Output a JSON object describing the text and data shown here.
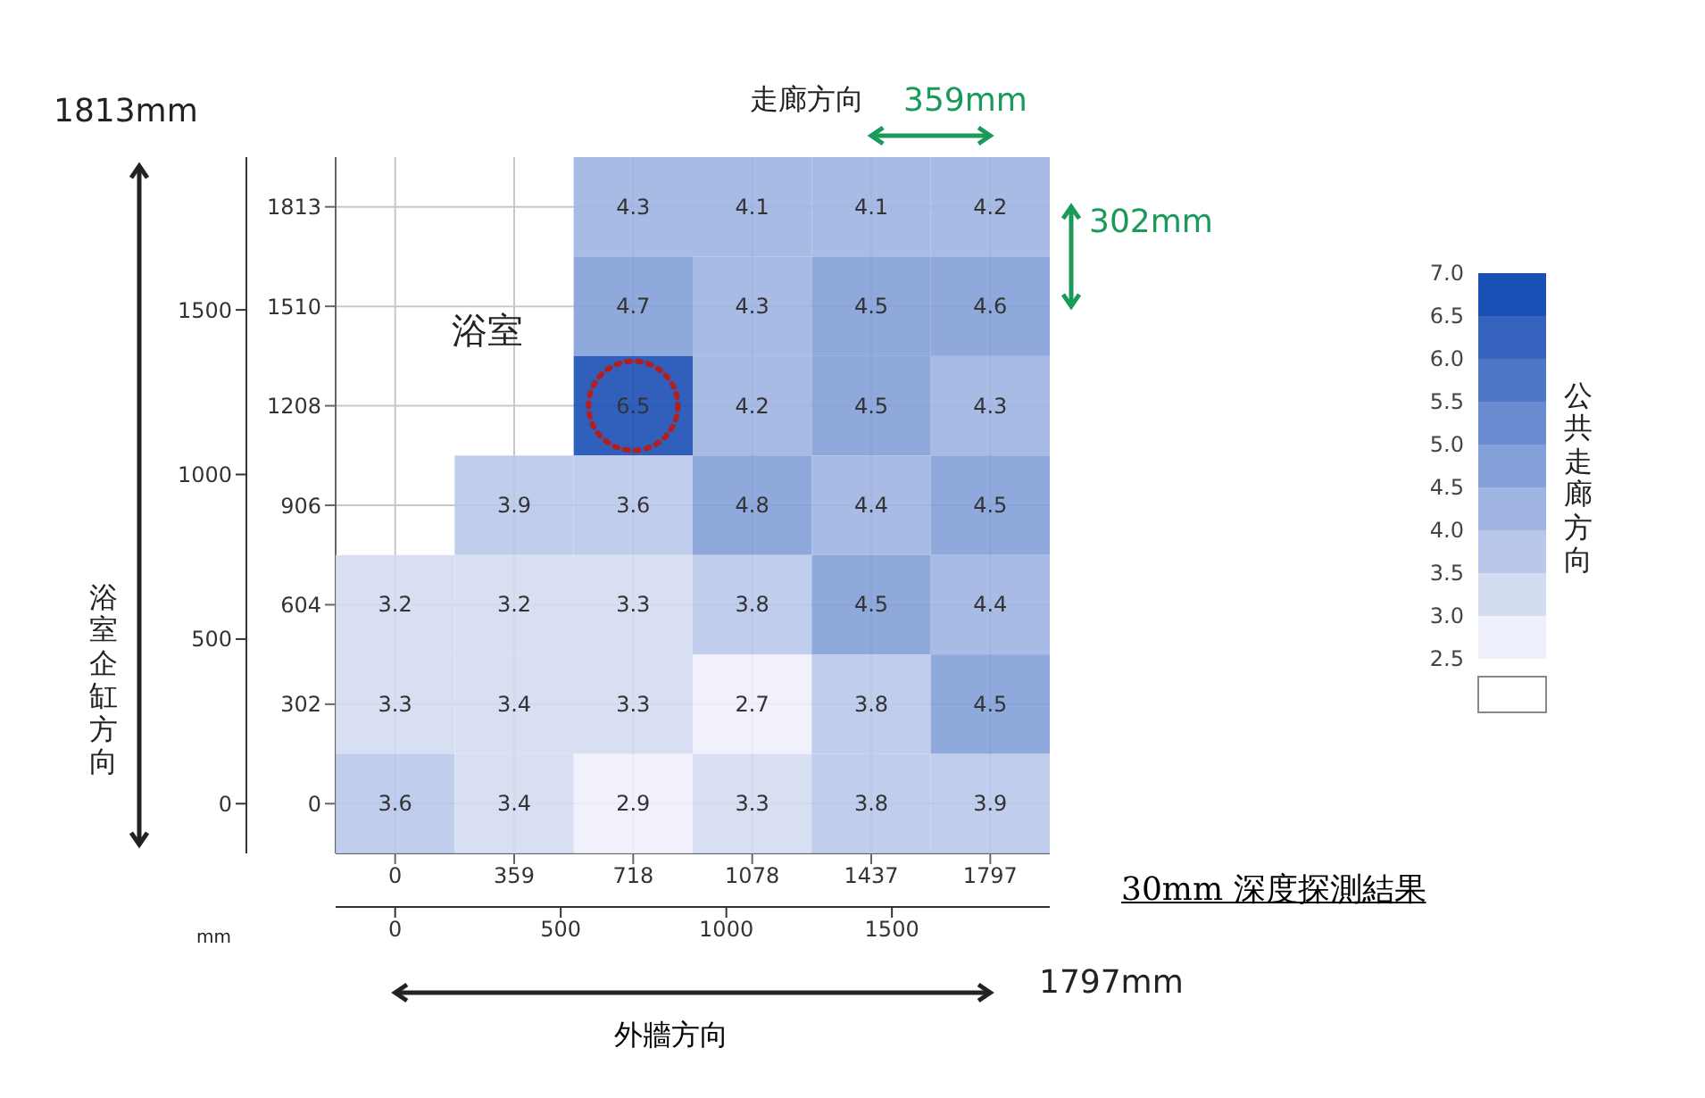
{
  "chart_data": {
    "type": "heatmap",
    "title": "30mm 深度探測結果",
    "xlabel": "外牆方向",
    "categories": [
      "0",
      "359",
      "718",
      "1078",
      "1437",
      "1797"
    ],
    "y_categories": [
      "1813",
      "1510",
      "1208",
      "906",
      "604",
      "302",
      "0"
    ],
    "cells": [
      [
        null,
        null,
        4.3,
        4.1,
        4.1,
        4.2
      ],
      [
        null,
        null,
        4.7,
        4.3,
        4.5,
        4.6
      ],
      [
        null,
        null,
        6.5,
        4.2,
        4.5,
        4.3
      ],
      [
        null,
        3.9,
        3.6,
        4.8,
        4.4,
        4.5
      ],
      [
        3.2,
        3.2,
        3.3,
        3.8,
        4.5,
        4.4
      ],
      [
        3.3,
        3.4,
        3.3,
        2.7,
        3.8,
        4.5
      ],
      [
        3.6,
        3.4,
        2.9,
        3.3,
        3.8,
        3.9
      ]
    ],
    "data_labels": true,
    "grid": true,
    "clim": [
      2.5,
      7.0
    ],
    "cticks": [
      2.5,
      {
        "value": 3,
        "label": "3.0"
      },
      3.5,
      {
        "value": 4,
        "label": "4.0"
      },
      4.5,
      {
        "value": 5,
        "label": "5.0"
      },
      5.5,
      {
        "value": 6,
        "label": "6.0"
      },
      6.5,
      {
        "value": 7,
        "label": "7.0"
      }
    ],
    "x2lim": [
      0,
      1797
    ],
    "x2ticks": [
      0,
      500,
      1000,
      1500
    ],
    "y2lim": [
      0,
      1813
    ],
    "y2ticks": [
      0,
      500,
      1000,
      1500
    ],
    "annotations": [
      "1813mm",
      "走廊方向",
      "359mm",
      "302mm",
      "浴室",
      "公共走廊方向",
      "mm",
      "1797mm",
      "浴室企缸方向"
    ]
  }
}
